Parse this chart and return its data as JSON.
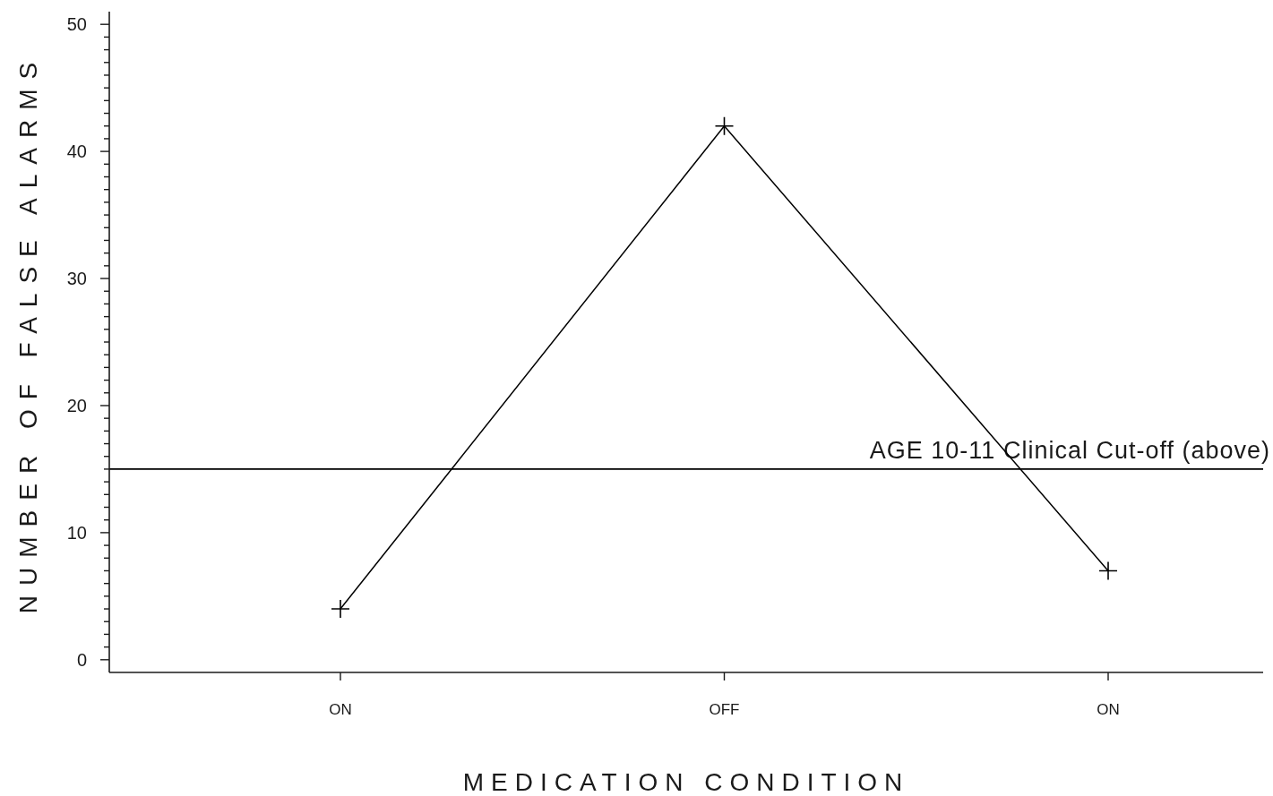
{
  "chart_data": {
    "type": "line",
    "xlabel": "MEDICATION CONDITION",
    "ylabel": "NUMBER OF FALSE ALARMS",
    "categories": [
      "ON",
      "OFF",
      "ON"
    ],
    "series": [
      {
        "color": "#000000",
        "values": [
          4,
          42,
          7
        ]
      }
    ],
    "ylim": [
      -1,
      51
    ],
    "yticks": [
      0,
      {
        "value": 1,
        "label": null
      },
      {
        "value": 2,
        "label": null
      },
      {
        "value": 3,
        "label": null
      },
      {
        "value": 4,
        "label": null
      },
      {
        "value": 5,
        "label": null
      },
      {
        "value": 6,
        "label": null
      },
      {
        "value": 7,
        "label": null
      },
      {
        "value": 8,
        "label": null
      },
      {
        "value": 9,
        "label": null
      },
      10,
      {
        "value": 11,
        "label": null
      },
      {
        "value": 12,
        "label": null
      },
      {
        "value": 13,
        "label": null
      },
      {
        "value": 14,
        "label": null
      },
      {
        "value": 15,
        "label": null
      },
      {
        "value": 16,
        "label": null
      },
      {
        "value": 17,
        "label": null
      },
      {
        "value": 18,
        "label": null
      },
      {
        "value": 19,
        "label": null
      },
      20,
      {
        "value": 21,
        "label": null
      },
      {
        "value": 22,
        "label": null
      },
      {
        "value": 23,
        "label": null
      },
      {
        "value": 24,
        "label": null
      },
      {
        "value": 25,
        "label": null
      },
      {
        "value": 26,
        "label": null
      },
      {
        "value": 27,
        "label": null
      },
      {
        "value": 28,
        "label": null
      },
      {
        "value": 29,
        "label": null
      },
      30,
      {
        "value": 31,
        "label": null
      },
      {
        "value": 32,
        "label": null
      },
      {
        "value": 33,
        "label": null
      },
      {
        "value": 34,
        "label": null
      },
      {
        "value": 35,
        "label": null
      },
      {
        "value": 36,
        "label": null
      },
      {
        "value": 37,
        "label": null
      },
      {
        "value": 38,
        "label": null
      },
      {
        "value": 39,
        "label": null
      },
      40,
      {
        "value": 41,
        "label": null
      },
      {
        "value": 42,
        "label": null
      },
      {
        "value": 43,
        "label": null
      },
      {
        "value": 44,
        "label": null
      },
      {
        "value": 45,
        "label": null
      },
      {
        "value": 46,
        "label": null
      },
      {
        "value": 47,
        "label": null
      },
      {
        "value": 48,
        "label": null
      },
      {
        "value": 49,
        "label": null
      },
      50
    ],
    "marker": "cross",
    "line_style": "solid",
    "ref_lines": [
      {
        "axis": "y",
        "value": 15,
        "label": "AGE 10-11 Clinical Cut-off (above)",
        "color": "#000000"
      }
    ]
  }
}
